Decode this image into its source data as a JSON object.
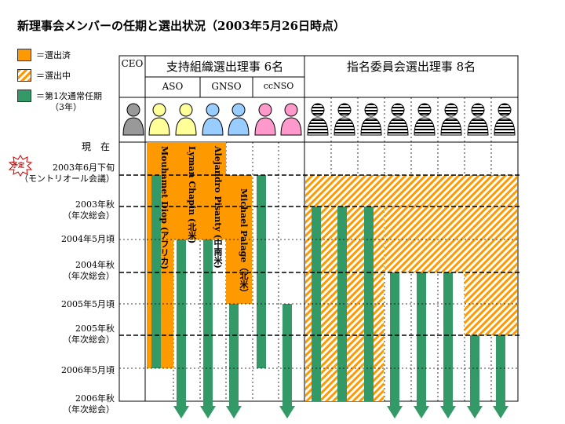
{
  "title": "新理事会メンバーの任期と選出状況（2003年5月26日時点）",
  "legend": [
    {
      "label": "＝選出済",
      "style": "orange"
    },
    {
      "label": "＝選出中",
      "style": "hatch"
    },
    {
      "label": "＝第1次通常任期",
      "style": "green"
    }
  ],
  "legend_sub": "（3年）",
  "header": {
    "ceo": "CEO",
    "so_group": "支持組織選出理事 6名",
    "nom_group": "指名委員会選出理事 8名",
    "aso": "ASO",
    "gnso": "GNSO",
    "ccnso": "ccNSO"
  },
  "timeline": {
    "now": "現　在",
    "t1": "2003年6月下旬",
    "t1b": "（モントリオール会議）",
    "t2": "2003年秋",
    "t2b": "（年次総会）",
    "t3": "2004年5月頃",
    "t4": "2004年秋",
    "t4b": "（年次総会）",
    "t5": "2005年5月頃",
    "t6": "2005年秋",
    "t6b": "（年次総会）",
    "t7": "2006年5月頃",
    "t8": "2006年秋",
    "t8b": "（年次総会）"
  },
  "badge": "予定",
  "names": {
    "diop": "Mouhamet Diop (アフリカ)",
    "chapin": "Lyman Chapin (北米)",
    "pisanty": "Alejandro Pisanty (中南米)",
    "palage": "Michael Palage（北米）"
  },
  "colors": {
    "orange": "#ff9900",
    "green": "#339966",
    "ceo": "#999999",
    "aso": "#ffff99",
    "gnso": "#99ccff",
    "ccnso": "#ff99cc"
  }
}
